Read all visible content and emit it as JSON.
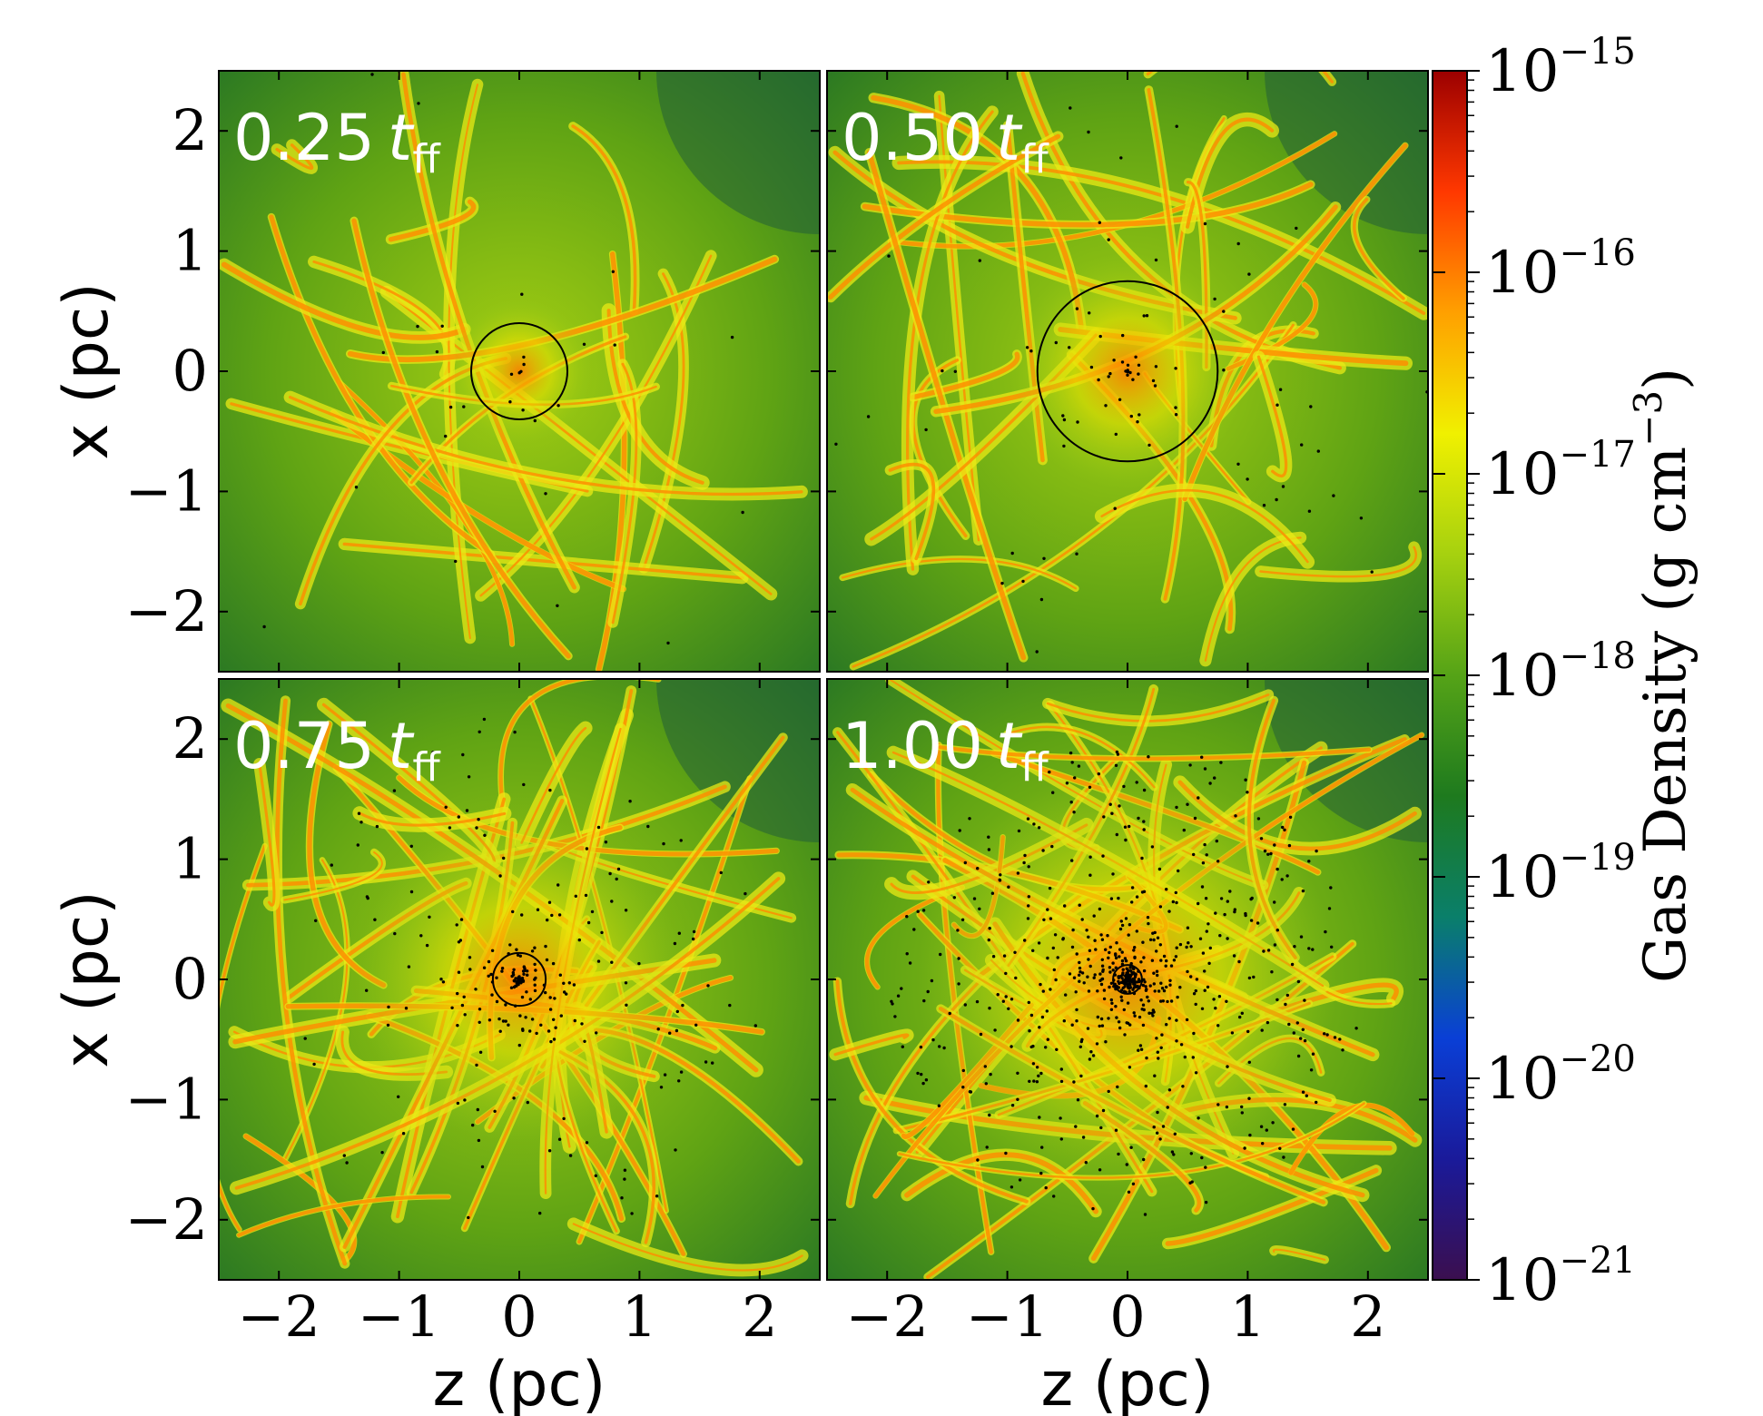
{
  "chart_data": {
    "type": "heatmap",
    "panels": [
      {
        "id": "p1",
        "label_value": "0.25",
        "label_symbol": "t",
        "label_sub": "ff",
        "circle": {
          "cx": 0.0,
          "cy": 0.0,
          "r": 0.4
        }
      },
      {
        "id": "p2",
        "label_value": "0.50",
        "label_symbol": "t",
        "label_sub": "ff",
        "circle": {
          "cx": 0.0,
          "cy": 0.0,
          "r": 0.75
        }
      },
      {
        "id": "p3",
        "label_value": "0.75",
        "label_symbol": "t",
        "label_sub": "ff",
        "circle": {
          "cx": 0.0,
          "cy": 0.0,
          "r": 0.22
        }
      },
      {
        "id": "p4",
        "label_value": "1.00",
        "label_symbol": "t",
        "label_sub": "ff",
        "circle": {
          "cx": 0.0,
          "cy": 0.0,
          "r": 0.12
        }
      }
    ],
    "xlabel": "z  (pc)",
    "ylabel": "x  (pc)",
    "xlim": [
      -2.5,
      2.5
    ],
    "ylim": [
      -2.5,
      2.5
    ],
    "xticks": [
      -2,
      -1,
      0,
      1,
      2
    ],
    "yticks": [
      -2,
      -1,
      0,
      1,
      2
    ],
    "xtick_labels": [
      "−2",
      "−1",
      "0",
      "1",
      "2"
    ],
    "ytick_labels": [
      "−2",
      "−1",
      "0",
      "1",
      "2"
    ],
    "colorbar": {
      "label": "Gas Density (g cm",
      "label_exp": "−3",
      "label_close": ")",
      "scale": "log",
      "range": [
        1e-21,
        1e-15
      ],
      "ticks": [
        {
          "base": "10",
          "exp": "−15",
          "value": 1e-15
        },
        {
          "base": "10",
          "exp": "−16",
          "value": 1e-16
        },
        {
          "base": "10",
          "exp": "−17",
          "value": 1e-17
        },
        {
          "base": "10",
          "exp": "−18",
          "value": 1e-18
        },
        {
          "base": "10",
          "exp": "−19",
          "value": 1e-19
        },
        {
          "base": "10",
          "exp": "−20",
          "value": 1e-20
        },
        {
          "base": "10",
          "exp": "−21",
          "value": 1e-21
        }
      ],
      "colormap": [
        "#3b0f4f",
        "#1a1a9a",
        "#0a3fd6",
        "#0a7f6a",
        "#1e7a1e",
        "#55a317",
        "#a6d10f",
        "#f0f000",
        "#ffa000",
        "#ff3800",
        "#9c0000"
      ]
    }
  }
}
